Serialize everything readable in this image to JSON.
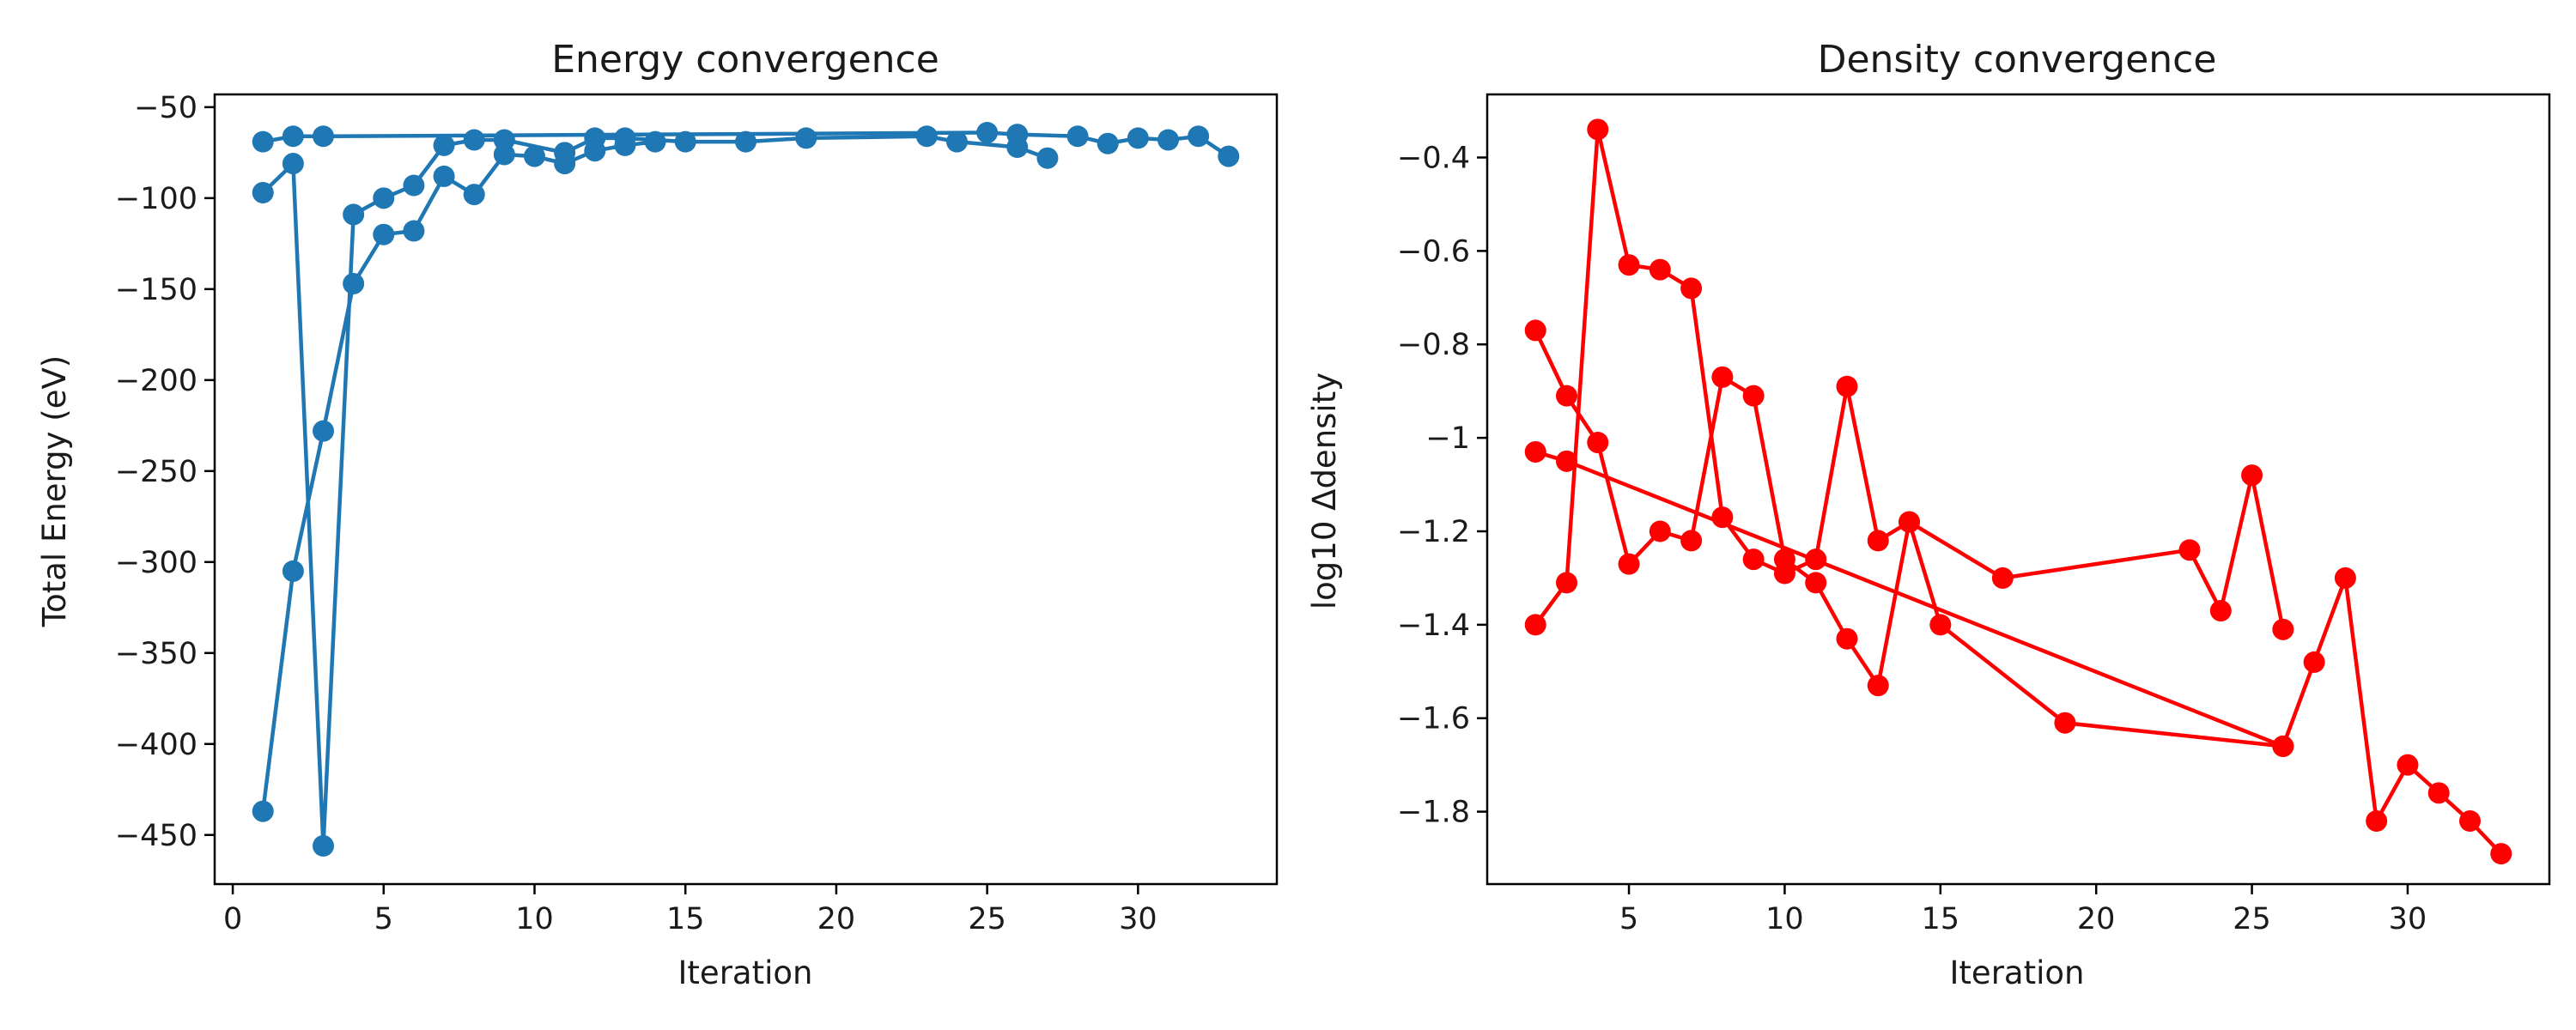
{
  "chart_data": [
    {
      "type": "line",
      "title": "Energy convergence",
      "xlabel": "Iteration",
      "ylabel": "Total Energy (eV)",
      "xlim": [
        -0.6,
        34.6
      ],
      "ylim": [
        -477,
        -43
      ],
      "xticks": [
        0,
        5,
        10,
        15,
        20,
        25,
        30
      ],
      "yticks": [
        -50,
        -100,
        -150,
        -200,
        -250,
        -300,
        -350,
        -400,
        -450
      ],
      "color": "#1f77b4",
      "grid": false,
      "series": [
        {
          "x": [
            1,
            2,
            3,
            4,
            5,
            6,
            7,
            8,
            9,
            10,
            11,
            12,
            13,
            14
          ],
          "values": [
            -437,
            -305,
            -228,
            -147,
            -120,
            -118,
            -88,
            -98,
            -76,
            -77,
            -81,
            -74,
            -71,
            -69
          ]
        },
        {
          "x": [
            1,
            2,
            3,
            4,
            5,
            6,
            7,
            8,
            9,
            11,
            12,
            13,
            15,
            17,
            19,
            23,
            24,
            26,
            27
          ],
          "values": [
            -97,
            -81,
            -456,
            -109,
            -100,
            -93,
            -71,
            -68,
            -68,
            -75,
            -67,
            -67,
            -69,
            -69,
            -67,
            -66,
            -69,
            -72,
            -78
          ]
        },
        {
          "x": [
            1,
            2,
            3,
            25,
            26,
            28,
            29,
            30,
            31,
            32,
            33
          ],
          "values": [
            -69,
            -66,
            -66,
            -64,
            -65,
            -66,
            -70,
            -67,
            -68,
            -66,
            -77
          ]
        }
      ]
    },
    {
      "type": "line",
      "title": "Density convergence",
      "xlabel": "Iteration",
      "ylabel": "log10 Δdensity",
      "xlim": [
        0.45,
        34.55
      ],
      "ylim": [
        -1.955,
        -0.265
      ],
      "xticks": [
        5,
        10,
        15,
        20,
        25,
        30
      ],
      "yticks": [
        -0.4,
        -0.6,
        -0.8,
        -1.0,
        -1.2,
        -1.4,
        -1.6,
        -1.8
      ],
      "color": "#ff0000",
      "grid": false,
      "series": [
        {
          "x": [
            2,
            3,
            4,
            5,
            6,
            7,
            8,
            9,
            10,
            11,
            12,
            13,
            14,
            15,
            19,
            26
          ],
          "values": [
            -1.4,
            -1.31,
            -0.34,
            -0.63,
            -0.64,
            -0.68,
            -1.17,
            -1.26,
            -1.29,
            -1.26,
            -0.89,
            -1.22,
            -1.18,
            -1.4,
            -1.61,
            -1.66
          ]
        },
        {
          "x": [
            2,
            3,
            4,
            5,
            6,
            7,
            8,
            9,
            10,
            11,
            12,
            13,
            14,
            17,
            23,
            24,
            25,
            26
          ],
          "values": [
            -0.77,
            -0.91,
            -1.01,
            -1.27,
            -1.2,
            -1.22,
            -0.87,
            -0.91,
            -1.26,
            -1.31,
            -1.43,
            -1.53,
            -1.18,
            -1.3,
            -1.24,
            -1.37,
            -1.08,
            -1.41
          ]
        },
        {
          "x": [
            2,
            3,
            26,
            27,
            28,
            29,
            30,
            31,
            32,
            33
          ],
          "values": [
            -1.03,
            -1.05,
            -1.66,
            -1.48,
            -1.3,
            -1.82,
            -1.7,
            -1.76,
            -1.82,
            -1.89
          ]
        }
      ]
    }
  ]
}
